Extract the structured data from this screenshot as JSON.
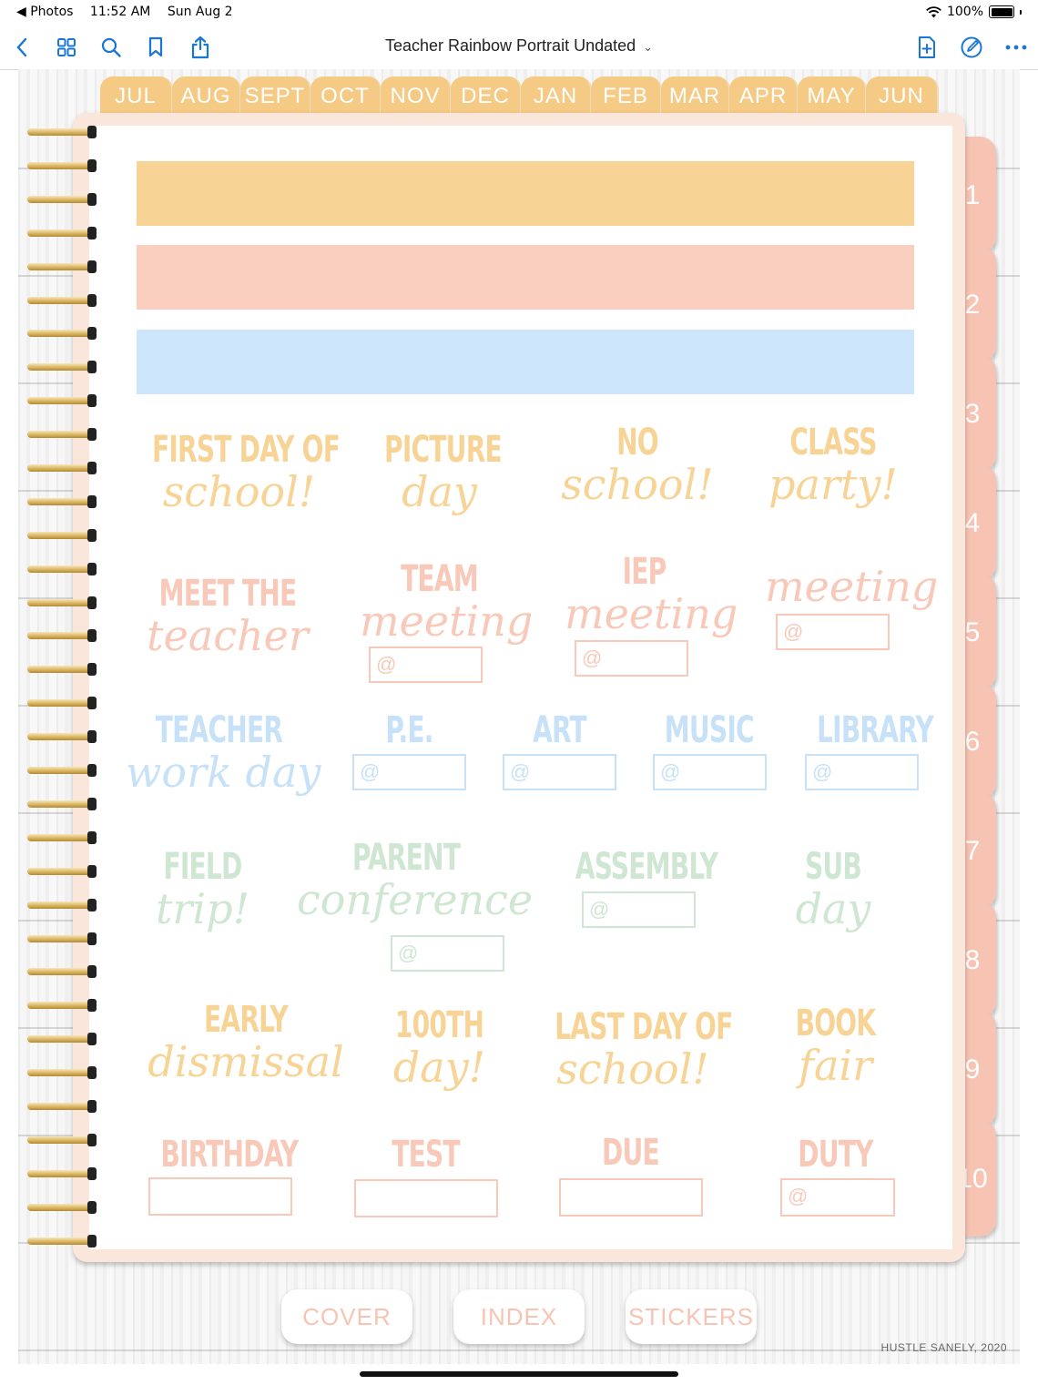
{
  "status_bar": {
    "back_app": "◀ Photos",
    "time": "11:52 AM",
    "date": "Sun Aug 2",
    "battery": "100%"
  },
  "toolbar": {
    "title": "Teacher Rainbow Portrait Undated",
    "icons": [
      "back-icon",
      "grid-icon",
      "search-icon",
      "bookmark-icon",
      "share-icon",
      "add-page-icon",
      "markup-icon",
      "more-icon"
    ]
  },
  "months": [
    "JUL",
    "AUG",
    "SEPT",
    "OCT",
    "NOV",
    "DEC",
    "JAN",
    "FEB",
    "MAR",
    "APR",
    "MAY",
    "JUN"
  ],
  "section_tabs": [
    "1",
    "2",
    "3",
    "4",
    "5",
    "6",
    "7",
    "8",
    "9",
    "10"
  ],
  "colors": {
    "yellow": "#f7d496",
    "pink": "#fbcfbf",
    "blue": "#cde6fb",
    "green": "#cfe6d2",
    "tab_yellow": "#f5ca84",
    "tab_pink": "#f7c4b3"
  },
  "stickers": {
    "first_day": {
      "top": "FIRST DAY OF",
      "bottom": "school!"
    },
    "picture_day": {
      "top": "PICTURE",
      "bottom": "day"
    },
    "no_school": {
      "top": "NO",
      "bottom": "school!"
    },
    "class_party": {
      "top": "CLASS",
      "bottom": "party!"
    },
    "meet_teacher": {
      "top": "MEET THE",
      "bottom": "teacher"
    },
    "team_meeting": {
      "top": "TEAM",
      "bottom": "meeting",
      "at": "@"
    },
    "iep_meeting": {
      "top": "IEP",
      "bottom": "meeting",
      "at": "@"
    },
    "meeting": {
      "bottom": "meeting",
      "at": "@"
    },
    "teacher_work_day": {
      "top": "TEACHER",
      "bottom": "work day"
    },
    "pe": {
      "top": "P.E.",
      "at": "@"
    },
    "art": {
      "top": "ART",
      "at": "@"
    },
    "music": {
      "top": "MUSIC",
      "at": "@"
    },
    "library": {
      "top": "LIBRARY",
      "at": "@"
    },
    "field_trip": {
      "top": "FIELD",
      "bottom": "trip!"
    },
    "parent_conference": {
      "top": "PARENT",
      "bottom": "conference",
      "at": "@"
    },
    "assembly": {
      "top": "ASSEMBLY",
      "at": "@"
    },
    "sub_day": {
      "top": "SUB",
      "bottom": "day"
    },
    "early_dismissal": {
      "top": "EARLY",
      "bottom": "dismissal"
    },
    "hundredth_day": {
      "top": "100TH",
      "bottom": "day!"
    },
    "last_day": {
      "top": "LAST DAY OF",
      "bottom": "school!"
    },
    "book_fair": {
      "top": "BOOK",
      "bottom": "fair"
    },
    "birthday": {
      "top": "BIRTHDAY"
    },
    "test": {
      "top": "TEST"
    },
    "due": {
      "top": "DUE"
    },
    "duty": {
      "top": "DUTY",
      "at": "@"
    }
  },
  "bottom_buttons": {
    "cover": "COVER",
    "index": "INDEX",
    "stickers": "STICKERS"
  },
  "credit": "HUSTLE SANELY, 2020"
}
